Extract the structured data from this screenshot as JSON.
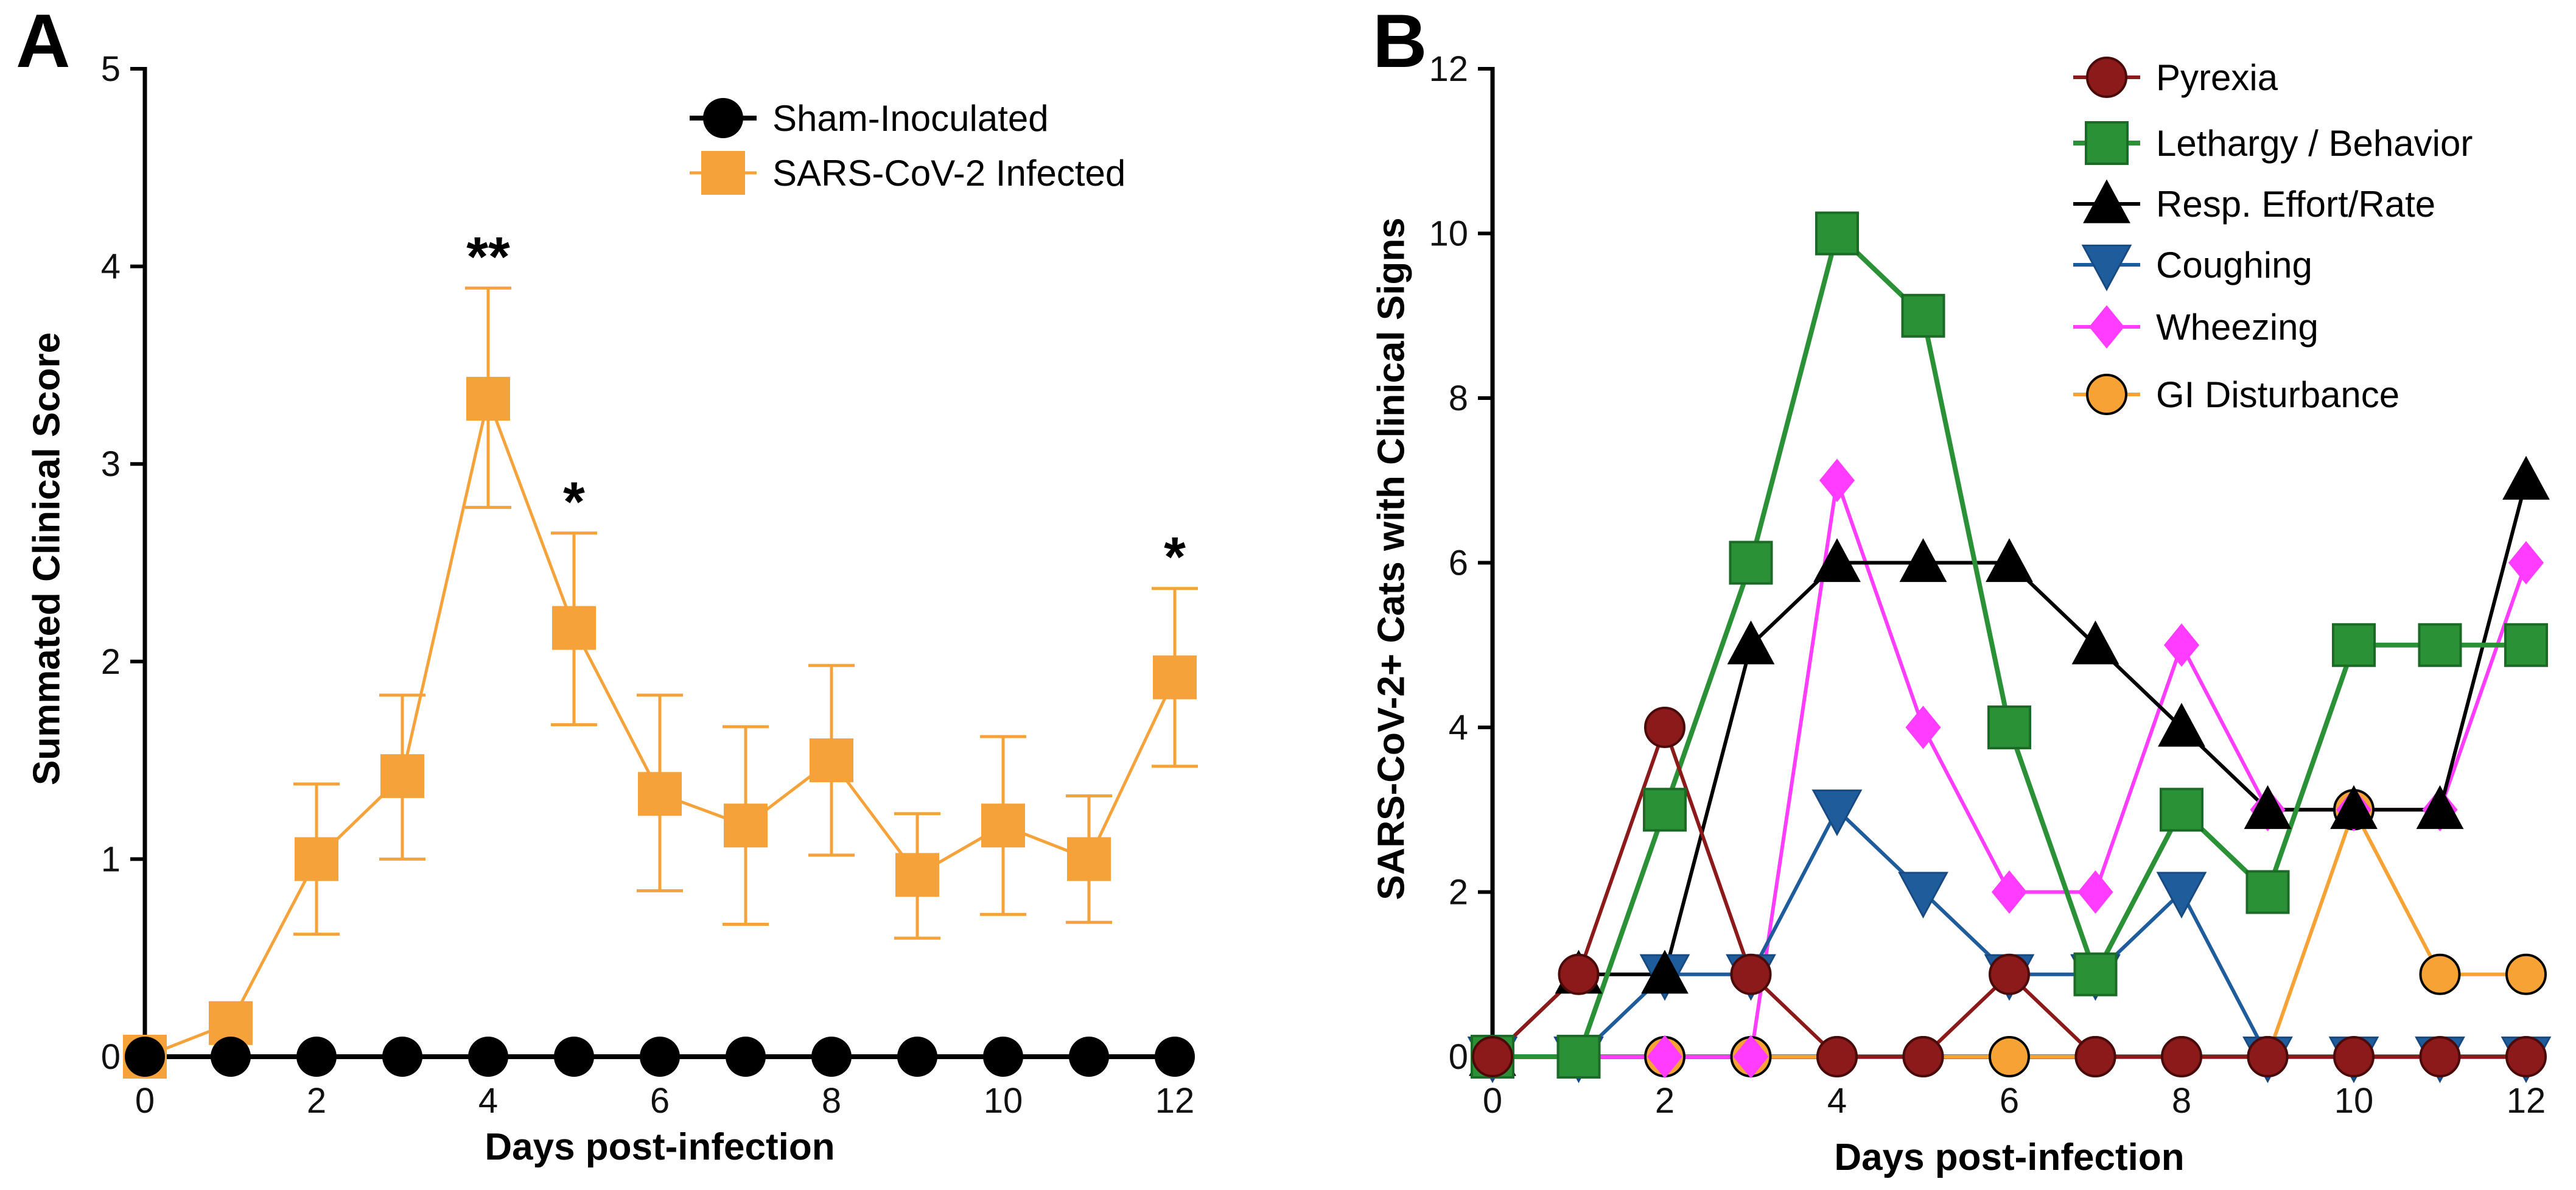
{
  "chart_data": [
    {
      "panel": "A",
      "type": "line",
      "xlabel": "Days post-infection",
      "ylabel": "Summated Clinical Score",
      "xlim": [
        0,
        12
      ],
      "ylim": [
        0,
        5
      ],
      "xticks": [
        0,
        2,
        4,
        6,
        8,
        10,
        12
      ],
      "yticks": [
        0,
        1,
        2,
        3,
        4,
        5
      ],
      "x": [
        0,
        1,
        2,
        3,
        4,
        5,
        6,
        7,
        8,
        9,
        10,
        11,
        12
      ],
      "series": [
        {
          "name": "Sham-Inoculated",
          "marker": "circle",
          "color": "#000000",
          "edge_color": "#000000",
          "values": [
            0,
            0,
            0,
            0,
            0,
            0,
            0,
            0,
            0,
            0,
            0,
            0,
            0
          ]
        },
        {
          "name": "SARS-CoV-2 Infected",
          "marker": "square",
          "color": "#F6A23A",
          "edge_color": "#F6A23A",
          "values": [
            0,
            0.17,
            1.0,
            1.42,
            3.33,
            2.17,
            1.33,
            1.17,
            1.5,
            0.92,
            1.17,
            1.0,
            1.92
          ],
          "error_low": [
            null,
            null,
            0.62,
            1.0,
            2.78,
            1.68,
            0.84,
            0.67,
            1.02,
            0.6,
            0.72,
            0.68,
            1.47
          ],
          "error_high": [
            null,
            null,
            1.38,
            1.83,
            3.89,
            2.65,
            1.83,
            1.67,
            1.98,
            1.23,
            1.62,
            1.32,
            2.37
          ]
        }
      ],
      "annotations": [
        {
          "x": 4,
          "text": "**"
        },
        {
          "x": 5,
          "text": "*"
        },
        {
          "x": 12,
          "text": "*"
        }
      ]
    },
    {
      "panel": "B",
      "type": "line",
      "xlabel": "Days post-infection",
      "ylabel": "SARS-CoV-2+ Cats with Clinical Signs",
      "xlim": [
        0,
        12
      ],
      "ylim": [
        0,
        12
      ],
      "xticks": [
        0,
        2,
        4,
        6,
        8,
        10,
        12
      ],
      "yticks": [
        0,
        2,
        4,
        6,
        8,
        10,
        12
      ],
      "x": [
        0,
        1,
        2,
        3,
        4,
        5,
        6,
        7,
        8,
        9,
        10,
        11,
        12
      ],
      "series": [
        {
          "name": "Pyrexia",
          "marker": "circle",
          "color": "#8C1A1A",
          "edge_color": "#4A0A0A",
          "values": [
            0,
            1,
            4,
            1,
            0,
            0,
            1,
            0,
            0,
            0,
            0,
            0,
            0
          ]
        },
        {
          "name": "Lethargy / Behavior",
          "marker": "square",
          "color": "#2A9136",
          "edge_color": "#1B6A25",
          "values": [
            0,
            0,
            3,
            6,
            10,
            9,
            4,
            1,
            3,
            2,
            5,
            5,
            5
          ]
        },
        {
          "name": "Resp. Effort/Rate",
          "marker": "triangle-up",
          "color": "#000000",
          "edge_color": "#000000",
          "values": [
            0,
            1,
            1,
            5,
            6,
            6,
            6,
            5,
            4,
            3,
            3,
            3,
            7
          ]
        },
        {
          "name": "Coughing",
          "marker": "triangle-down",
          "color": "#1F5C9C",
          "edge_color": "#174A80",
          "values": [
            0,
            0,
            1,
            1,
            3,
            2,
            1,
            1,
            2,
            0,
            0,
            0,
            0
          ]
        },
        {
          "name": "Wheezing",
          "marker": "diamond",
          "color": "#FF3CFF",
          "edge_color": "#E020E0",
          "values": [
            0,
            0,
            0,
            0,
            7,
            4,
            2,
            2,
            5,
            3,
            3,
            3,
            6
          ]
        },
        {
          "name": "GI Disturbance",
          "marker": "circle",
          "color": "#F7A234",
          "edge_color": "#000000",
          "values": [
            0,
            0,
            0,
            0,
            0,
            0,
            0,
            0,
            0,
            0,
            3,
            1,
            1
          ]
        }
      ]
    }
  ]
}
